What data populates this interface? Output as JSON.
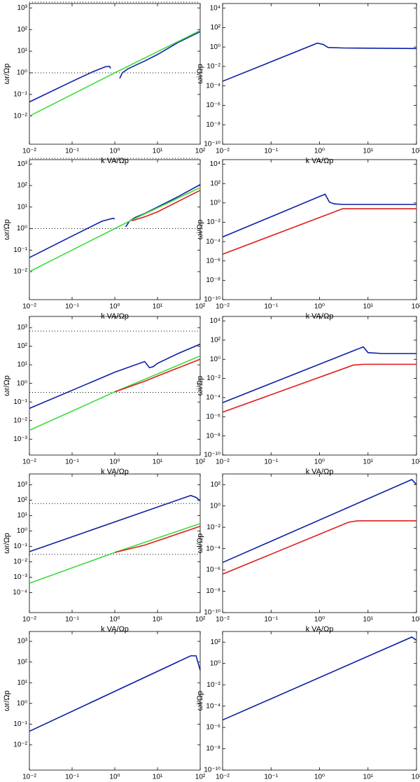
{
  "chart_data": [
    {
      "type": "line",
      "xlabel": "k VA/Ωp",
      "ylabel": "ωr/Ωp",
      "log": true,
      "xlim": [
        0.01,
        100
      ],
      "xticks": [
        {
          "value": 0.01,
          "label": "10⁻²"
        },
        {
          "value": 0.1,
          "label": "10⁻¹"
        },
        {
          "value": 1,
          "label": "10⁰"
        },
        {
          "value": 10,
          "label": "10¹"
        },
        {
          "value": 100,
          "label": "10²"
        }
      ],
      "ylim": [
        0.0005,
        1600
      ],
      "yticks": [
        {
          "value": 0.01,
          "label": "10⁻²"
        },
        {
          "value": 0.1,
          "label": "10⁻¹"
        },
        {
          "value": 1,
          "label": "10⁰"
        },
        {
          "value": 10,
          "label": "10¹"
        },
        {
          "value": 100,
          "label": "10²"
        },
        {
          "value": 1000,
          "label": "10³"
        }
      ],
      "hlines": [
        1836,
        1
      ],
      "series": [
        {
          "color": "#0b1fa6",
          "x": [
            0.01,
            0.1,
            0.3,
            0.6,
            0.75,
            0.8
          ],
          "values": [
            0.045,
            0.4,
            1.1,
            1.9,
            2.0,
            1.6
          ]
        },
        {
          "color": "#0b1fa6",
          "x": [
            1.3,
            1.5,
            2,
            3,
            5,
            10,
            30,
            100
          ],
          "values": [
            0.55,
            1.0,
            1.5,
            2.2,
            3.5,
            7,
            25,
            80
          ]
        },
        {
          "color": "#3ddc3d",
          "x": [
            0.01,
            1,
            100
          ],
          "values": [
            0.01,
            1,
            90
          ]
        }
      ]
    },
    {
      "type": "line",
      "xlabel": "k VA/Ωp",
      "ylabel": "ωi/Ωp",
      "log": true,
      "xlim": [
        0.01,
        100
      ],
      "xticks": [
        {
          "value": 0.01,
          "label": "10⁻²"
        },
        {
          "value": 0.1,
          "label": "10⁻¹"
        },
        {
          "value": 1,
          "label": "10⁰"
        },
        {
          "value": 10,
          "label": "10¹"
        },
        {
          "value": 100,
          "label": "10²"
        }
      ],
      "ylim": [
        1e-10,
        30000
      ],
      "yticks": [
        {
          "value": 1e-10,
          "label": "10⁻¹⁰"
        },
        {
          "value": 1e-08,
          "label": "10⁻⁸"
        },
        {
          "value": 1e-06,
          "label": "10⁻⁶"
        },
        {
          "value": 0.0001,
          "label": "10⁻⁴"
        },
        {
          "value": 0.01,
          "label": "10⁻²"
        },
        {
          "value": 1,
          "label": "10⁰"
        },
        {
          "value": 100,
          "label": "10²"
        },
        {
          "value": 10000,
          "label": "10⁴"
        }
      ],
      "series": [
        {
          "color": "#0b1fa6",
          "x": [
            0.01,
            0.9,
            1.2,
            1.5,
            3,
            100
          ],
          "values": [
            0.0003,
            2.5,
            1.8,
            0.9,
            0.8,
            0.7
          ]
        }
      ]
    },
    {
      "type": "line",
      "xlabel": "k VA/Ωp",
      "ylabel": "ωr/Ωp",
      "log": true,
      "xlim": [
        0.01,
        100
      ],
      "xticks": [
        {
          "value": 0.01,
          "label": "10⁻²"
        },
        {
          "value": 0.1,
          "label": "10⁻¹"
        },
        {
          "value": 1,
          "label": "10⁰"
        },
        {
          "value": 10,
          "label": "10¹"
        },
        {
          "value": 100,
          "label": "10²"
        }
      ],
      "ylim": [
        0.0005,
        1600
      ],
      "yticks": [
        {
          "value": 0.01,
          "label": "10⁻²"
        },
        {
          "value": 0.1,
          "label": "10⁻¹"
        },
        {
          "value": 1,
          "label": "10⁰"
        },
        {
          "value": 10,
          "label": "10¹"
        },
        {
          "value": 100,
          "label": "10²"
        },
        {
          "value": 1000,
          "label": "10³"
        }
      ],
      "hlines": [
        1836,
        1
      ],
      "series": [
        {
          "color": "#0b1fa6",
          "x": [
            0.01,
            0.1,
            0.5,
            0.9,
            1.0
          ],
          "values": [
            0.045,
            0.45,
            2.2,
            3,
            2.8
          ]
        },
        {
          "color": "#0b1fa6",
          "x": [
            1.8,
            2.2,
            3,
            5,
            10,
            30,
            100
          ],
          "values": [
            1.2,
            2.2,
            3.3,
            5,
            10,
            30,
            110
          ]
        },
        {
          "color": "#3ddc3d",
          "x": [
            0.01,
            1,
            2.5,
            100
          ],
          "values": [
            0.01,
            1,
            2.5,
            80
          ]
        },
        {
          "color": "#e01a1a",
          "x": [
            2.5,
            5,
            10,
            30,
            100
          ],
          "values": [
            2.3,
            3.5,
            6,
            18,
            60
          ]
        }
      ]
    },
    {
      "type": "line",
      "xlabel": "k VA/Ωp",
      "ylabel": "ωi/Ωp",
      "log": true,
      "xlim": [
        0.01,
        100
      ],
      "xticks": [
        {
          "value": 0.01,
          "label": "10⁻²"
        },
        {
          "value": 0.1,
          "label": "10⁻¹"
        },
        {
          "value": 1,
          "label": "10⁰"
        },
        {
          "value": 10,
          "label": "10¹"
        },
        {
          "value": 100,
          "label": "10²"
        }
      ],
      "ylim": [
        1e-10,
        30000
      ],
      "yticks": [
        {
          "value": 1e-10,
          "label": "10⁻¹⁰"
        },
        {
          "value": 1e-08,
          "label": "10⁻⁸"
        },
        {
          "value": 1e-06,
          "label": "10⁻⁶"
        },
        {
          "value": 0.0001,
          "label": "10⁻⁴"
        },
        {
          "value": 0.01,
          "label": "10⁻²"
        },
        {
          "value": 1,
          "label": "10⁰"
        },
        {
          "value": 100,
          "label": "10²"
        },
        {
          "value": 10000,
          "label": "10⁴"
        }
      ],
      "series": [
        {
          "color": "#0b1fa6",
          "x": [
            0.01,
            1.3,
            1.6,
            2,
            3,
            100
          ],
          "values": [
            0.0003,
            8,
            1.2,
            0.8,
            0.7,
            0.7
          ]
        },
        {
          "color": "#e01a1a",
          "x": [
            0.01,
            3,
            5,
            100
          ],
          "values": [
            5e-06,
            0.25,
            0.25,
            0.25
          ]
        }
      ]
    },
    {
      "type": "line",
      "xlabel": "k VA/Ωp",
      "ylabel": "ωr/Ωp",
      "log": true,
      "xlim": [
        0.01,
        100
      ],
      "xticks": [
        {
          "value": 0.01,
          "label": "10⁻²"
        },
        {
          "value": 0.1,
          "label": "10⁻¹"
        },
        {
          "value": 1,
          "label": "10⁰"
        },
        {
          "value": 10,
          "label": "10¹"
        },
        {
          "value": 100,
          "label": "10²"
        }
      ],
      "ylim": [
        0.00014,
        4000
      ],
      "yticks": [
        {
          "value": 0.001,
          "label": "10⁻³"
        },
        {
          "value": 0.01,
          "label": "10⁻²"
        },
        {
          "value": 0.1,
          "label": "10⁻¹"
        },
        {
          "value": 1,
          "label": "10⁰"
        },
        {
          "value": 10,
          "label": "10¹"
        },
        {
          "value": 100,
          "label": "10²"
        },
        {
          "value": 1000,
          "label": "10³"
        }
      ],
      "hlines": [
        650,
        0.33
      ],
      "series": [
        {
          "color": "#0b1fa6",
          "x": [
            0.01,
            1,
            5,
            6.5,
            8,
            10,
            30,
            100
          ],
          "values": [
            0.045,
            4,
            15,
            7,
            8,
            12,
            40,
            130
          ]
        },
        {
          "color": "#3ddc3d",
          "x": [
            0.01,
            1,
            100
          ],
          "values": [
            0.003,
            0.35,
            30
          ]
        },
        {
          "color": "#e01a1a",
          "x": [
            1,
            5,
            10,
            100
          ],
          "values": [
            0.35,
            1.3,
            2.5,
            20
          ]
        }
      ]
    },
    {
      "type": "line",
      "xlabel": "k VA/Ωp",
      "ylabel": "ωi/Ωp",
      "log": true,
      "xlim": [
        0.01,
        100
      ],
      "xticks": [
        {
          "value": 0.01,
          "label": "10⁻²"
        },
        {
          "value": 0.1,
          "label": "10⁻¹"
        },
        {
          "value": 1,
          "label": "10⁰"
        },
        {
          "value": 10,
          "label": "10¹"
        },
        {
          "value": 100,
          "label": "10²"
        }
      ],
      "ylim": [
        1e-10,
        30000
      ],
      "yticks": [
        {
          "value": 1e-10,
          "label": "10⁻¹⁰"
        },
        {
          "value": 1e-08,
          "label": "10⁻⁸"
        },
        {
          "value": 1e-06,
          "label": "10⁻⁶"
        },
        {
          "value": 0.0001,
          "label": "10⁻⁴"
        },
        {
          "value": 0.01,
          "label": "10⁻²"
        },
        {
          "value": 1,
          "label": "10⁰"
        },
        {
          "value": 100,
          "label": "10²"
        },
        {
          "value": 10000,
          "label": "10⁴"
        }
      ],
      "series": [
        {
          "color": "#0b1fa6",
          "x": [
            0.01,
            8,
            10,
            20,
            100
          ],
          "values": [
            3e-05,
            20,
            5,
            4,
            4
          ]
        },
        {
          "color": "#e01a1a",
          "x": [
            0.01,
            5,
            8,
            100
          ],
          "values": [
            3e-06,
            0.25,
            0.3,
            0.3
          ]
        }
      ]
    },
    {
      "type": "line",
      "xlabel": "k VA/Ωp",
      "ylabel": "ωr/Ωp",
      "log": true,
      "xlim": [
        0.01,
        100
      ],
      "xticks": [
        {
          "value": 0.01,
          "label": "10⁻²"
        },
        {
          "value": 0.1,
          "label": "10⁻¹"
        },
        {
          "value": 1,
          "label": "10⁰"
        },
        {
          "value": 10,
          "label": "10¹"
        },
        {
          "value": 100,
          "label": "10²"
        }
      ],
      "ylim": [
        5e-06,
        5000
      ],
      "yticks": [
        {
          "value": 0.0001,
          "label": "10⁻⁴"
        },
        {
          "value": 0.001,
          "label": "10⁻³"
        },
        {
          "value": 0.01,
          "label": "10⁻²"
        },
        {
          "value": 0.1,
          "label": "10⁻¹"
        },
        {
          "value": 1,
          "label": "10⁰"
        },
        {
          "value": 10,
          "label": "10¹"
        },
        {
          "value": 100,
          "label": "10²"
        },
        {
          "value": 1000,
          "label": "10³"
        }
      ],
      "hlines": [
        60,
        0.03
      ],
      "series": [
        {
          "color": "#0b1fa6",
          "x": [
            0.01,
            60,
            80,
            100
          ],
          "values": [
            0.045,
            200,
            150,
            90
          ]
        },
        {
          "color": "#3ddc3d",
          "x": [
            0.01,
            1,
            100
          ],
          "values": [
            0.0004,
            0.04,
            3
          ]
        },
        {
          "color": "#e01a1a",
          "x": [
            1,
            5,
            100
          ],
          "values": [
            0.04,
            0.12,
            2
          ]
        }
      ]
    },
    {
      "type": "line",
      "xlabel": "k VA/Ωp",
      "ylabel": "ωi/Ωp",
      "log": true,
      "xlim": [
        0.01,
        100
      ],
      "xticks": [
        {
          "value": 0.01,
          "label": "10⁻²"
        },
        {
          "value": 0.1,
          "label": "10⁻¹"
        },
        {
          "value": 1,
          "label": "10⁰"
        },
        {
          "value": 10,
          "label": "10¹"
        },
        {
          "value": 100,
          "label": "10²"
        }
      ],
      "ylim": [
        1e-10,
        1000
      ],
      "yticks": [
        {
          "value": 1e-10,
          "label": "10⁻¹⁰"
        },
        {
          "value": 1e-08,
          "label": "10⁻⁸"
        },
        {
          "value": 1e-06,
          "label": "10⁻⁶"
        },
        {
          "value": 0.0001,
          "label": "10⁻⁴"
        },
        {
          "value": 0.01,
          "label": "10⁻²"
        },
        {
          "value": 1,
          "label": "10⁰"
        },
        {
          "value": 100,
          "label": "10²"
        }
      ],
      "series": [
        {
          "color": "#0b1fa6",
          "x": [
            0.01,
            80,
            100
          ],
          "values": [
            5e-06,
            300,
            100
          ]
        },
        {
          "color": "#e01a1a",
          "x": [
            0.01,
            4,
            6,
            100
          ],
          "values": [
            4e-07,
            0.03,
            0.04,
            0.04
          ]
        }
      ]
    },
    {
      "type": "line",
      "xlabel": "k VA/Ωp",
      "ylabel": "ωr/Ωp",
      "log": true,
      "xlim": [
        0.01,
        100
      ],
      "xticks": [
        {
          "value": 0.01,
          "label": "10⁻²"
        },
        {
          "value": 0.1,
          "label": "10⁻¹"
        },
        {
          "value": 1,
          "label": "10⁰"
        },
        {
          "value": 10,
          "label": "10¹"
        },
        {
          "value": 100,
          "label": "10²"
        }
      ],
      "ylim": [
        0.0006,
        3000
      ],
      "yticks": [
        {
          "value": 0.01,
          "label": "10⁻²"
        },
        {
          "value": 0.1,
          "label": "10⁻¹"
        },
        {
          "value": 1,
          "label": "10⁰"
        },
        {
          "value": 10,
          "label": "10¹"
        },
        {
          "value": 100,
          "label": "10²"
        },
        {
          "value": 1000,
          "label": "10³"
        }
      ],
      "series": [
        {
          "color": "#0b1fa6",
          "x": [
            0.01,
            60,
            80,
            100
          ],
          "values": [
            0.045,
            200,
            200,
            40
          ]
        }
      ]
    },
    {
      "type": "line",
      "xlabel": "k VA/Ωp",
      "ylabel": "ωi/Ωp",
      "log": true,
      "xlim": [
        0.01,
        100
      ],
      "xticks": [
        {
          "value": 0.01,
          "label": "10⁻²"
        },
        {
          "value": 0.1,
          "label": "10⁻¹"
        },
        {
          "value": 1,
          "label": "10⁰"
        },
        {
          "value": 10,
          "label": "10¹"
        },
        {
          "value": 100,
          "label": "10²"
        }
      ],
      "ylim": [
        1e-10,
        1000
      ],
      "yticks": [
        {
          "value": 1e-10,
          "label": "10⁻¹⁰"
        },
        {
          "value": 1e-08,
          "label": "10⁻⁸"
        },
        {
          "value": 1e-06,
          "label": "10⁻⁶"
        },
        {
          "value": 0.0001,
          "label": "10⁻⁴"
        },
        {
          "value": 0.01,
          "label": "10⁻²"
        },
        {
          "value": 1,
          "label": "10⁰"
        },
        {
          "value": 100,
          "label": "10²"
        }
      ],
      "series": [
        {
          "color": "#0b1fa6",
          "x": [
            0.01,
            80,
            100
          ],
          "values": [
            5e-06,
            300,
            150
          ]
        }
      ]
    }
  ]
}
